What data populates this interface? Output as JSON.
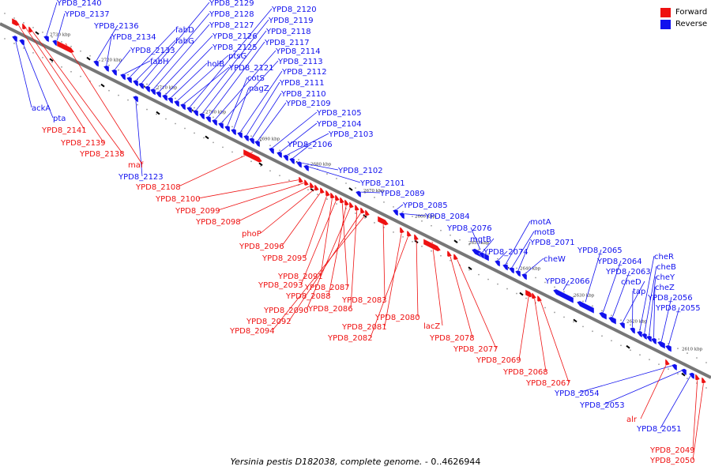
{
  "caption": {
    "organism": "Yersinia pestis D182038, complete genome.",
    "range": " - 0..4626944"
  },
  "legend": {
    "forward_label": "Forward",
    "reverse_label": "Reverse",
    "forward_color": "#ee1111",
    "reverse_color": "#1111ee"
  },
  "colors": {
    "forward": "#ee1111",
    "reverse": "#1111ee",
    "axis": "#777777"
  },
  "ticks": [
    "2730 kbp",
    "2720 kbp",
    "2710 kbp",
    "2700 kbp",
    "2690 kbp",
    "2680 kbp",
    "2670 kbp",
    "2660 kbp",
    "2650 kbp",
    "2640 kbp",
    "2630 kbp",
    "2620 kbp",
    "2610 kbp"
  ],
  "reverse_genes": [
    "YPD8_2140",
    "YPD8_2137",
    "YPD8_2136",
    "YPD8_2134",
    "YPD8_2133",
    "fabH",
    "fabD",
    "fabG",
    "YPD8_2129",
    "YPD8_2128",
    "YPD8_2127",
    "YPD8_2126",
    "YPD8_2125",
    "holB",
    "ptsG",
    "YPD8_2121",
    "YPD8_2120",
    "YPD8_2119",
    "YPD8_2118",
    "YPD8_2117",
    "YPD8_2114",
    "YPD8_2113",
    "cotS",
    "nagZ",
    "YPD8_2112",
    "YPD8_2111",
    "YPD8_2110",
    "YPD8_2109",
    "YPD8_2105",
    "YPD8_2104",
    "YPD8_2103",
    "YPD8_2106",
    "YPD8_2102",
    "YPD8_2101",
    "YPD8_2089",
    "YPD8_2085",
    "YPD8_2084",
    "YPD8_2076",
    "mgtB",
    "YPD8_2074",
    "motA",
    "motB",
    "YPD8_2071",
    "cheW",
    "YPD8_2066",
    "YPD8_2065",
    "YPD8_2064",
    "YPD8_2063",
    "cheD",
    "tap",
    "cheR",
    "cheB",
    "cheY",
    "cheZ",
    "YPD8_2056",
    "YPD8_2055",
    "ackA",
    "pta",
    "YPD8_2123",
    "YPD8_2054",
    "YPD8_2053",
    "YPD8_2051"
  ],
  "forward_genes": [
    "YPD8_2141",
    "YPD8_2139",
    "YPD8_2138",
    "maf",
    "YPD8_2108",
    "YPD8_2100",
    "YPD8_2099",
    "YPD8_2098",
    "phoP",
    "YPD8_2096",
    "YPD8_2095",
    "YPD8_2091",
    "YPD8_2093",
    "YPD8_2087",
    "YPD8_2088",
    "YPD8_2090",
    "YPD8_2086",
    "YPD8_2092",
    "YPD8_2094",
    "YPD8_2083",
    "YPD8_2081",
    "YPD8_2082",
    "YPD8_2080",
    "lacZ",
    "YPD8_2078",
    "YPD8_2077",
    "YPD8_2069",
    "YPD8_2068",
    "YPD8_2067",
    "alr",
    "YPD8_2049",
    "YPD8_2050"
  ]
}
